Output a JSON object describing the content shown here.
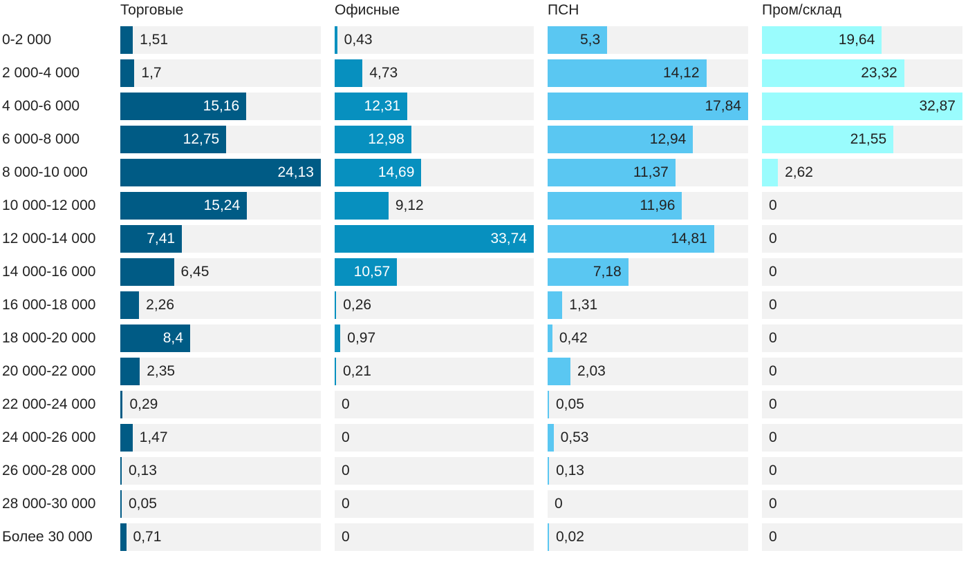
{
  "chart_data": {
    "type": "bar",
    "orientation": "horizontal",
    "layout": "small-multiples",
    "categories": [
      "0-2 000",
      "2 000-4 000",
      "4 000-6 000",
      "6 000-8 000",
      "8 000-10 000",
      "10 000-12 000",
      "12 000-14 000",
      "14 000-16 000",
      "16 000-18 000",
      "18 000-20 000",
      "20 000-22 000",
      "22 000-24 000",
      "24 000-26 000",
      "26 000-28 000",
      "28 000-30 000",
      "Более 30 000"
    ],
    "series": [
      {
        "name": "Торговые",
        "color": "#005b85",
        "values": [
          1.51,
          1.7,
          15.16,
          12.75,
          24.13,
          15.24,
          7.41,
          6.45,
          2.26,
          8.4,
          2.35,
          0.29,
          1.47,
          0.13,
          0.05,
          0.71
        ],
        "labels": [
          "1,51",
          "1,7",
          "15,16",
          "12,75",
          "24,13",
          "15,24",
          "7,41",
          "6,45",
          "2,26",
          "8,4",
          "2,35",
          "0,29",
          "1,47",
          "0,13",
          "0,05",
          "0,71"
        ]
      },
      {
        "name": "Офисные",
        "color": "#0790bf",
        "values": [
          0.43,
          4.73,
          12.31,
          12.98,
          14.69,
          9.12,
          33.74,
          10.57,
          0.26,
          0.97,
          0.21,
          0,
          0,
          0,
          0,
          0
        ],
        "labels": [
          "0,43",
          "4,73",
          "12,31",
          "12,98",
          "14,69",
          "9,12",
          "33,74",
          "10,57",
          "0,26",
          "0,97",
          "0,21",
          "0",
          "0",
          "0",
          "0",
          "0"
        ]
      },
      {
        "name": "ПСН",
        "color": "#5ac7f2",
        "values": [
          5.3,
          14.12,
          17.84,
          12.94,
          11.37,
          11.96,
          14.81,
          7.18,
          1.31,
          0.42,
          2.03,
          0.05,
          0.53,
          0.13,
          0,
          0.02
        ],
        "labels": [
          "5,3",
          "14,12",
          "17,84",
          "12,94",
          "11,37",
          "11,96",
          "14,81",
          "7,18",
          "1,31",
          "0,42",
          "2,03",
          "0,05",
          "0,53",
          "0,13",
          "0",
          "0,02"
        ]
      },
      {
        "name": "Пром/склад",
        "color": "#9afcfd",
        "values": [
          19.64,
          23.32,
          32.87,
          21.55,
          2.62,
          0,
          0,
          0,
          0,
          0,
          0,
          0,
          0,
          0,
          0,
          0
        ],
        "labels": [
          "19,64",
          "23,32",
          "32,87",
          "21,55",
          "2,62",
          "0",
          "0",
          "0",
          "0",
          "0",
          "0",
          "0",
          "0",
          "0",
          "0",
          "0"
        ]
      }
    ],
    "title": "",
    "xlabel": "",
    "ylabel": "",
    "grid": false,
    "legend": "none"
  }
}
